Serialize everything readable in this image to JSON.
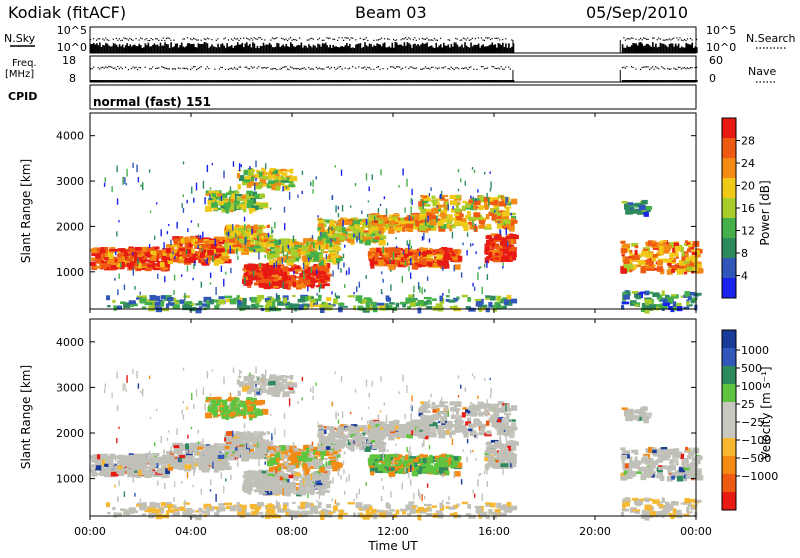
{
  "header": {
    "station": "Kodiak (fitACF)",
    "beam": "Beam 03",
    "date": "05/Sep/2010"
  },
  "summary_panels": {
    "nsky_label": "N.Sky",
    "nsky_ticks": [
      "10^5",
      "10^0"
    ],
    "nsearch_label": "N.Search",
    "freq_label_line1": "Freq.",
    "freq_label_line2": "[MHz]",
    "freq_ticks": [
      "18",
      "8"
    ],
    "nave_label": "Nave",
    "nave_ticks": [
      "60",
      "0"
    ],
    "cpid_label": "CPID",
    "cpid_value": "normal (fast) 151"
  },
  "colors": {
    "power_scale": [
      "#1a22ee",
      "#2f56b8",
      "#2e8a5e",
      "#45b04a",
      "#a8cc2a",
      "#f0c818",
      "#f28a14",
      "#ee5a12",
      "#e81a14"
    ],
    "velocity_scale": [
      "#e81a14",
      "#ee5a12",
      "#f28a14",
      "#f5b830",
      "#c8c8c0",
      "#c8c8c0",
      "#5fc440",
      "#2e8a5e",
      "#2f56b8",
      "#1a3a98"
    ],
    "ground_scatter": "#c0c0b8"
  },
  "chart_data": [
    {
      "type": "heatmap",
      "name": "power",
      "ylabel": "Slant Range [km]",
      "xlabel": "",
      "xlim": [
        "00:00",
        "24:00"
      ],
      "ylim": [
        180,
        4500
      ],
      "yticks": [
        "1000",
        "2000",
        "3000",
        "4000"
      ],
      "data_gap": [
        "16:45",
        "21:00"
      ],
      "colorbar_label": "Power [dB]",
      "colorbar_ticks": [
        "4",
        "8",
        "12",
        "16",
        "20",
        "24",
        "28"
      ],
      "colorbar_range": [
        0,
        32
      ]
    },
    {
      "type": "heatmap",
      "name": "velocity",
      "ylabel": "Slant Range [km]",
      "xlabel": "Time UT",
      "xlim": [
        "00:00",
        "24:00"
      ],
      "xticks": [
        "00:00",
        "04:00",
        "08:00",
        "12:00",
        "16:00",
        "20:00",
        "00:00"
      ],
      "ylim": [
        180,
        4500
      ],
      "yticks": [
        "1000",
        "2000",
        "3000",
        "4000"
      ],
      "data_gap": [
        "16:45",
        "21:00"
      ],
      "colorbar_label": "Velocity [m s⁻¹]",
      "colorbar_ticks": [
        "1000",
        "500",
        "100",
        "25",
        "−25",
        "−100",
        "−500",
        "−1000"
      ]
    }
  ]
}
